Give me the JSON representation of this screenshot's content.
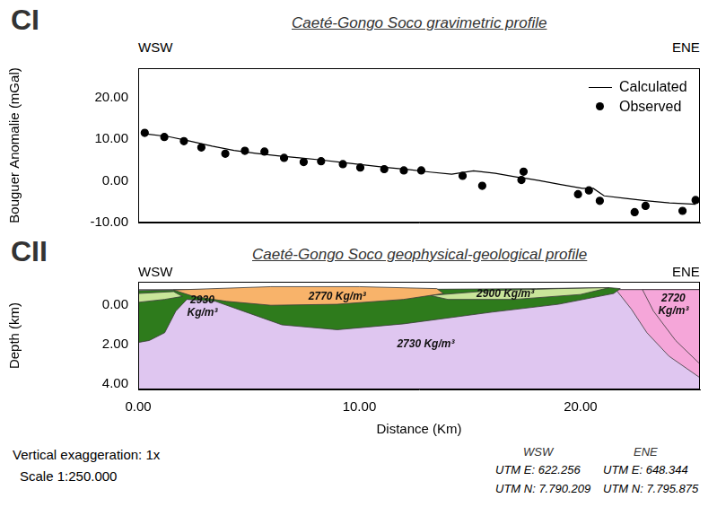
{
  "chart_data": [
    {
      "panel": "CI",
      "type": "line",
      "title": "Caeté-Gongo Soco gravimetric profile",
      "direction_labels": [
        "WSW",
        "ENE"
      ],
      "y_label": "Bouguer Anomalie (mGal)",
      "xlim": [
        -0.4,
        25.4
      ],
      "ylim": [
        -10,
        27
      ],
      "yticks": [
        {
          "value": -10,
          "label": "-10.00"
        },
        {
          "value": 0,
          "label": "0.00"
        },
        {
          "value": 10,
          "label": "10.00"
        },
        {
          "value": 20,
          "label": "20.00"
        }
      ],
      "tick_labels": "y",
      "grid": false,
      "legend": "upper right",
      "series": [
        {
          "name": "Calculated",
          "type": "line",
          "color": "#000000",
          "marker": "none",
          "x": [
            0,
            1,
            2,
            3,
            4,
            5,
            6,
            7,
            8,
            9,
            10,
            11,
            12,
            13,
            14,
            15,
            16,
            17,
            17.5,
            18,
            19,
            20,
            20.5,
            21,
            22,
            23,
            24,
            25.2
          ],
          "values": [
            11.2,
            10.6,
            9.5,
            8.3,
            7.3,
            6.6,
            6.0,
            5.5,
            5.0,
            4.4,
            3.8,
            3.2,
            2.7,
            2.1,
            1.6,
            2.4,
            1.8,
            0.9,
            0.5,
            0.1,
            -0.9,
            -1.8,
            -1.8,
            -3.6,
            -4.2,
            -4.8,
            -5.3,
            -5.6
          ]
        },
        {
          "name": "Observed",
          "type": "scatter",
          "color": "#000000",
          "marker": "circle",
          "x": [
            -0.1,
            0.8,
            1.7,
            2.5,
            3.6,
            4.5,
            5.4,
            6.3,
            7.2,
            8.0,
            9.0,
            9.8,
            10.9,
            11.8,
            12.6,
            14.5,
            15.4,
            17.2,
            17.3,
            19.8,
            20.3,
            20.8,
            22.4,
            22.9,
            24.6,
            25.2
          ],
          "values": [
            11.5,
            10.5,
            9.5,
            8.0,
            6.5,
            7.2,
            7.0,
            5.5,
            4.5,
            4.7,
            4.0,
            3.2,
            2.8,
            2.5,
            2.5,
            1.2,
            -1.2,
            0.2,
            2.2,
            -3.2,
            -2.3,
            -4.8,
            -7.5,
            -6.0,
            -7.2,
            -4.6
          ]
        }
      ]
    },
    {
      "panel": "CII",
      "type": "polygon",
      "title": "Caeté-Gongo Soco geophysical-geological profile",
      "direction_labels": [
        "WSW",
        "ENE"
      ],
      "x_label": "Distance (Km)",
      "y_label": "Depth (km)",
      "xlim": [
        0,
        25.4
      ],
      "ylim": [
        4.3,
        -1.2
      ],
      "xticks": [
        {
          "value": 0,
          "label": "0.00"
        },
        {
          "value": 10,
          "label": "10.00"
        },
        {
          "value": 20,
          "label": "20.00"
        }
      ],
      "yticks": [
        {
          "value": 0,
          "label": "0.00"
        },
        {
          "value": 2,
          "label": "2.00"
        },
        {
          "value": 4,
          "label": "4.00"
        }
      ],
      "grid": false,
      "polygons": [
        {
          "color": "#dfc6f0",
          "x": [
            0,
            25.4,
            25.4,
            0
          ],
          "y": [
            -0.8,
            -0.8,
            4.3,
            4.3
          ]
        },
        {
          "color": "#f5a6d9",
          "x": [
            21.6,
            25.4,
            25.4,
            24,
            23,
            22.3
          ],
          "y": [
            -0.8,
            -0.8,
            3.7,
            2.6,
            1.4,
            0.2
          ]
        },
        {
          "color": "#f5a6d9",
          "x": [
            22.8,
            25.4,
            25.4,
            24.3,
            23.3
          ],
          "y": [
            -0.8,
            -0.8,
            3.0,
            1.8,
            0.3
          ]
        },
        {
          "color": "#2e7b1c",
          "x": [
            0,
            1.6,
            6,
            13.5,
            18,
            21.3,
            21.8,
            21.5,
            19,
            16,
            12,
            9,
            6.5,
            5,
            3.5,
            2.2,
            1.7,
            1.2,
            0.5,
            0
          ],
          "y": [
            -0.75,
            -0.78,
            -0.8,
            -0.82,
            -0.85,
            -0.9,
            -0.85,
            -0.6,
            -0.05,
            0.35,
            0.95,
            1.25,
            1.0,
            0.4,
            -0.2,
            -0.3,
            0.3,
            1.4,
            1.8,
            1.9
          ]
        },
        {
          "color": "#c9e59a",
          "x": [
            0,
            1.2,
            2.0,
            1.6,
            0
          ],
          "y": [
            -0.15,
            -0.3,
            -0.45,
            -0.7,
            -0.6
          ]
        },
        {
          "color": "#c9e59a",
          "x": [
            13.2,
            16,
            19,
            21.3,
            20,
            17,
            14
          ],
          "y": [
            -0.5,
            -0.75,
            -0.85,
            -0.9,
            -0.55,
            -0.3,
            -0.3
          ]
        },
        {
          "color": "#f8b36a",
          "x": [
            1.6,
            6,
            10,
            13.5,
            13.8,
            12,
            9,
            6,
            4,
            2.5
          ],
          "y": [
            -0.78,
            -0.95,
            -0.95,
            -0.85,
            -0.6,
            -0.3,
            -0.05,
            0.0,
            -0.2,
            -0.45
          ]
        }
      ],
      "annotations": [
        {
          "text": [
            "2930",
            "Kg/m³"
          ],
          "x": 2.9,
          "y": 0.05
        },
        {
          "text": [
            "2770 Kg/m³"
          ],
          "x": 9.0,
          "y": -0.45
        },
        {
          "text": [
            "2900 Kg/m³"
          ],
          "x": 16.6,
          "y": -0.55
        },
        {
          "text": [
            "2730 Kg/m³"
          ],
          "x": 13.0,
          "y": 2.0
        },
        {
          "text": [
            "2720",
            "Kg/m³"
          ],
          "x": 24.2,
          "y": 0.0
        }
      ]
    }
  ],
  "footer": {
    "notes": [
      "Vertical exaggeration: 1x",
      "Scale 1:250.000"
    ],
    "coordinates": [
      {
        "end": "WSW",
        "easting": "UTM E: 622.256",
        "northing": "UTM N: 7.790.209"
      },
      {
        "end": "ENE",
        "easting": "UTM E: 648.344",
        "northing": "UTM N: 7.795.875"
      }
    ]
  }
}
